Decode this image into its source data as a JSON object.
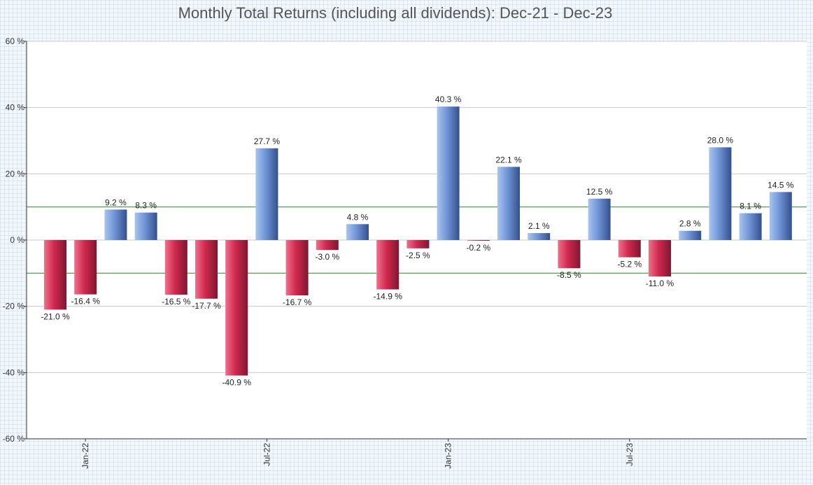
{
  "chart_data": {
    "type": "bar",
    "title": "Monthly Total Returns (including all dividends): Dec-21 - Dec-23",
    "xlabel": "",
    "ylabel": "",
    "ylim": [
      -60,
      60
    ],
    "yticks": [
      60,
      40,
      20,
      0,
      -20,
      -40,
      -60
    ],
    "ytick_labels": [
      "60 %",
      "40 %",
      "20 %",
      "0 %",
      "-20 %",
      "-40 %",
      "-60 %"
    ],
    "xtick_labels": [
      "Jan-22",
      "Jul-22",
      "Jan-23",
      "Jul-23"
    ],
    "xtick_positions": [
      1,
      7,
      13,
      19
    ],
    "reference_lines": [
      10,
      -10
    ],
    "grid": true,
    "legend": "none",
    "values": [
      -21.0,
      -16.4,
      9.2,
      8.3,
      -16.5,
      -17.7,
      -40.9,
      27.7,
      -16.7,
      -3.0,
      4.8,
      -14.9,
      -2.5,
      40.3,
      -0.2,
      22.1,
      2.1,
      -8.5,
      12.5,
      -5.2,
      -11.0,
      2.8,
      28.0,
      8.1,
      14.5
    ],
    "value_labels": [
      "-21.0 %",
      "-16.4 %",
      "9.2 %",
      "8.3 %",
      "-16.5 %",
      "-17.7 %",
      "-40.9 %",
      "27.7 %",
      "-16.7 %",
      "-3.0 %",
      "4.8 %",
      "-14.9 %",
      "-2.5 %",
      "40.3 %",
      "-0.2 %",
      "22.1 %",
      "2.1 %",
      "-8.5 %",
      "12.5 %",
      "-5.2 %",
      "-11.0 %",
      "2.8 %",
      "28.0 %",
      "8.1 %",
      "14.5 %"
    ],
    "colors": {
      "positive_light": "#a9c4ef",
      "positive_mid": "#6f93d6",
      "positive_dark": "#33508c",
      "negative_light": "#f0708c",
      "negative_mid": "#d0284e",
      "negative_dark": "#7d1830",
      "reference_line": "#3a9a3a",
      "grid": "#c8c8c8",
      "axis": "#333333"
    }
  }
}
